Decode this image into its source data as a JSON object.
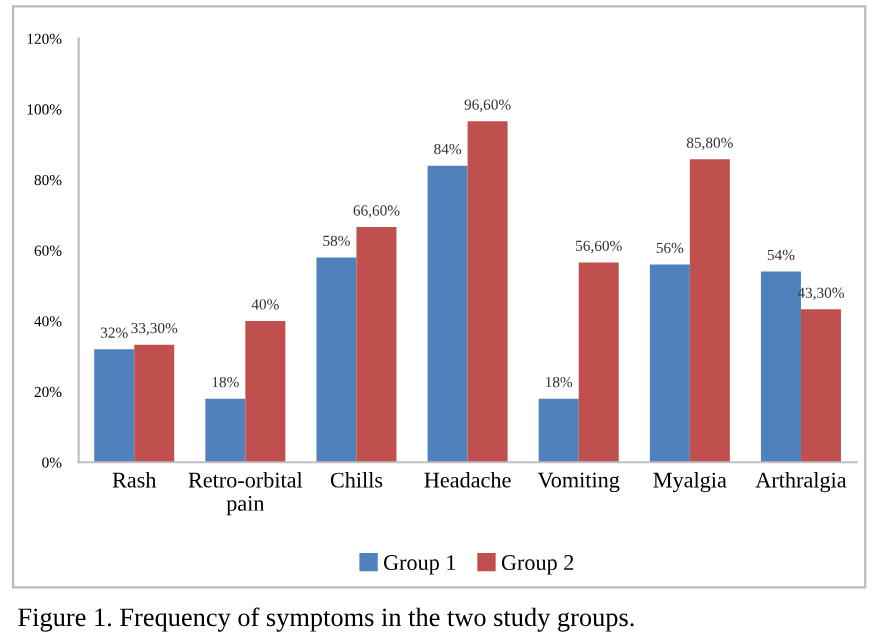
{
  "chart_data": {
    "type": "bar",
    "categories": [
      "Rash",
      "Retro-orbital pain",
      "Chills",
      "Headache",
      "Vomiting",
      "Myalgia",
      "Arthralgia"
    ],
    "series": [
      {
        "name": "Group 1",
        "color": "#4f81bd",
        "values": [
          32,
          18,
          58,
          84,
          18,
          56,
          54
        ],
        "value_labels": [
          "32%",
          "18%",
          "58%",
          "84%",
          "18%",
          "56%",
          "54%"
        ]
      },
      {
        "name": "Group 2",
        "color": "#c0504d",
        "values": [
          33.3,
          40,
          66.6,
          96.6,
          56.6,
          85.8,
          43.3
        ],
        "value_labels": [
          "33,30%",
          "40%",
          "66,60%",
          "96,60%",
          "56,60%",
          "85,80%",
          "43,30%"
        ]
      }
    ],
    "ylim": [
      0,
      120
    ],
    "yticks": [
      {
        "value": 0,
        "label": "0%"
      },
      {
        "value": 20,
        "label": "20%"
      },
      {
        "value": 40,
        "label": "40%"
      },
      {
        "value": 60,
        "label": "60%"
      },
      {
        "value": 80,
        "label": "80%"
      },
      {
        "value": 100,
        "label": "100%"
      },
      {
        "value": 120,
        "label": "120%"
      }
    ],
    "grid": false,
    "legend": "bottom",
    "annotations": [
      "Figure 1. Frequency of symptoms in the two study groups."
    ]
  }
}
